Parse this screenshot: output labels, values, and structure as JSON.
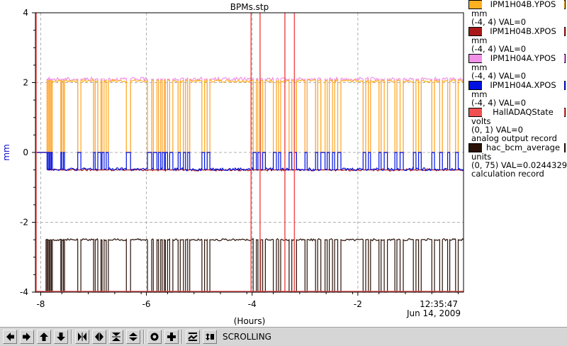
{
  "chart_data": {
    "type": "line",
    "title": "BPMs.stp",
    "xlabel": "(Hours)",
    "ylabel": "mm",
    "x_range": [
      -8.1,
      0
    ],
    "y_range": [
      -4,
      4
    ],
    "x_ticks": [
      -8,
      -6,
      -4,
      -2
    ],
    "y_ticks": [
      4,
      2,
      0,
      -2,
      -4
    ],
    "x_tick_labels": [
      "-8",
      "-6",
      "-4",
      "-2"
    ],
    "y_tick_labels": [
      "4",
      "2",
      "0",
      "-2",
      "-4"
    ],
    "grid": true,
    "timestamp": "12:35:47",
    "date": "Jun 14, 2009",
    "beam_off_intervals_hours": [
      [
        -7.88,
        -7.86
      ],
      [
        -7.84,
        -7.82
      ],
      [
        -7.8,
        -7.78
      ],
      [
        -7.62,
        -7.6
      ],
      [
        -7.57,
        -7.55
      ],
      [
        -7.3,
        -7.24
      ],
      [
        -7.0,
        -6.97
      ],
      [
        -6.92,
        -6.86
      ],
      [
        -6.84,
        -6.8
      ],
      [
        -6.76,
        -6.72
      ],
      [
        -6.38,
        -6.3
      ],
      [
        -5.98,
        -5.9
      ],
      [
        -5.87,
        -5.8
      ],
      [
        -5.77,
        -5.73
      ],
      [
        -5.7,
        -5.66
      ],
      [
        -5.64,
        -5.6
      ],
      [
        -5.56,
        -5.5
      ],
      [
        -5.4,
        -5.36
      ],
      [
        -5.3,
        -5.26
      ],
      [
        -5.22,
        -5.18
      ],
      [
        -4.95,
        -4.9
      ],
      [
        -4.85,
        -4.8
      ],
      [
        -3.98,
        -3.92
      ],
      [
        -3.89,
        -3.84
      ],
      [
        -3.8,
        -3.75
      ],
      [
        -3.6,
        -3.54
      ],
      [
        -3.5,
        -3.46
      ],
      [
        -3.3,
        -3.25
      ],
      [
        -3.2,
        -3.16
      ],
      [
        -3.0,
        -2.96
      ],
      [
        -2.8,
        -2.76
      ],
      [
        -2.7,
        -2.62
      ],
      [
        -2.58,
        -2.54
      ],
      [
        -2.48,
        -2.44
      ],
      [
        -2.38,
        -2.32
      ],
      [
        -1.9,
        -1.85
      ],
      [
        -1.8,
        -1.76
      ],
      [
        -1.6,
        -1.56
      ],
      [
        -1.5,
        -1.44
      ],
      [
        -1.3,
        -1.26
      ],
      [
        -1.2,
        -1.14
      ],
      [
        -0.95,
        -0.9
      ],
      [
        -0.85,
        -0.8
      ],
      [
        -0.6,
        -0.55
      ],
      [
        -0.45,
        -0.4
      ],
      [
        -0.3,
        -0.26
      ],
      [
        -0.15,
        -0.1
      ]
    ],
    "series": [
      {
        "name": "IPM1H04B.YPOS",
        "color": "#ffb020",
        "units": "mm",
        "range": "(-4, 4)",
        "value": "VAL=0",
        "on_level": 2.05,
        "off_level": 0,
        "start": -7.8,
        "pre_level": 0
      },
      {
        "name": "IPM1H04B.XPOS",
        "color": "#a81818",
        "units": "mm",
        "range": "(-4, 4)",
        "value": "VAL=0",
        "on_level": -0.5,
        "off_level": -0.5,
        "start": -7.8,
        "pre_level": 0
      },
      {
        "name": "IPM1H04A.YPOS",
        "color": "#f090e8",
        "units": "mm",
        "range": "(-4, 4)",
        "value": "VAL=0",
        "on_level": 2.1,
        "off_level": 0,
        "start": -7.8,
        "pre_level": 0
      },
      {
        "name": "IPM1H04A.XPOS",
        "color": "#0010e0",
        "units": "mm",
        "range": "(-4, 4)",
        "value": "VAL=0",
        "on_level": -0.48,
        "off_level": 0,
        "start": -7.8,
        "pre_level": 0
      },
      {
        "name": "HallADAQState",
        "color": "#f05050",
        "units": "volts",
        "range": "(0, 1)",
        "value": "VAL=0",
        "record": "analog output record",
        "spikes": [
          -4.02,
          -3.85,
          -3.38,
          -3.2
        ]
      },
      {
        "name": "hac_bcm_average",
        "color": "#2a1208",
        "units": "units",
        "range": "(0, 75)",
        "value": "VAL=0.0244329",
        "record": "calculation record",
        "on_level": -2.5,
        "off_level": -4,
        "start": -7.9,
        "pre_level": -4
      }
    ]
  },
  "toolbar": {
    "status": "SCROLLING"
  }
}
